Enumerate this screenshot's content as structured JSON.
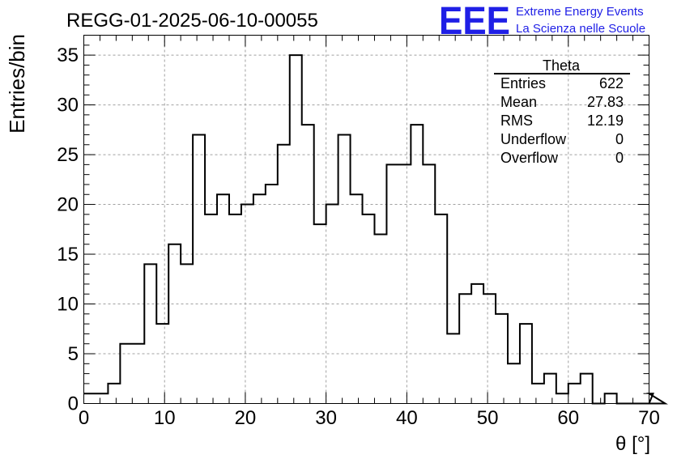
{
  "header": {
    "title": "REGG-01-2025-06-10-00055",
    "logo_text": "EEE",
    "logo_line1": "Extreme Energy Events",
    "logo_line2": "La Scienza nelle Scuole"
  },
  "colors": {
    "logo": "#1f1fe6",
    "histogram_line": "#000000",
    "grid": "#a0a0a0"
  },
  "stats": {
    "title": "Theta",
    "rows": [
      {
        "label": "Entries",
        "value": "622"
      },
      {
        "label": "Mean",
        "value": "27.83"
      },
      {
        "label": "RMS",
        "value": "12.19"
      },
      {
        "label": "Underflow",
        "value": "0"
      },
      {
        "label": "Overflow",
        "value": "0"
      }
    ]
  },
  "chart_data": {
    "type": "histogram",
    "title": "REGG-01-2025-06-10-00055",
    "xlabel": "θ [°]",
    "ylabel": "Entries/bin",
    "xlim": [
      0,
      70
    ],
    "ylim": [
      0,
      37
    ],
    "bin_width": 1.5,
    "grid": true,
    "x_ticks": [
      0,
      10,
      20,
      30,
      40,
      50,
      60,
      70
    ],
    "y_ticks": [
      0,
      5,
      10,
      15,
      20,
      25,
      30,
      35
    ],
    "values": [
      1,
      1,
      2,
      6,
      6,
      14,
      8,
      16,
      14,
      27,
      19,
      21,
      19,
      20,
      21,
      22,
      26,
      35,
      28,
      18,
      20,
      27,
      21,
      19,
      17,
      24,
      24,
      28,
      24,
      19,
      7,
      11,
      12,
      11,
      9,
      4,
      8,
      2,
      3,
      1,
      2,
      3,
      0,
      1,
      0,
      0,
      0,
      1,
      0
    ]
  }
}
